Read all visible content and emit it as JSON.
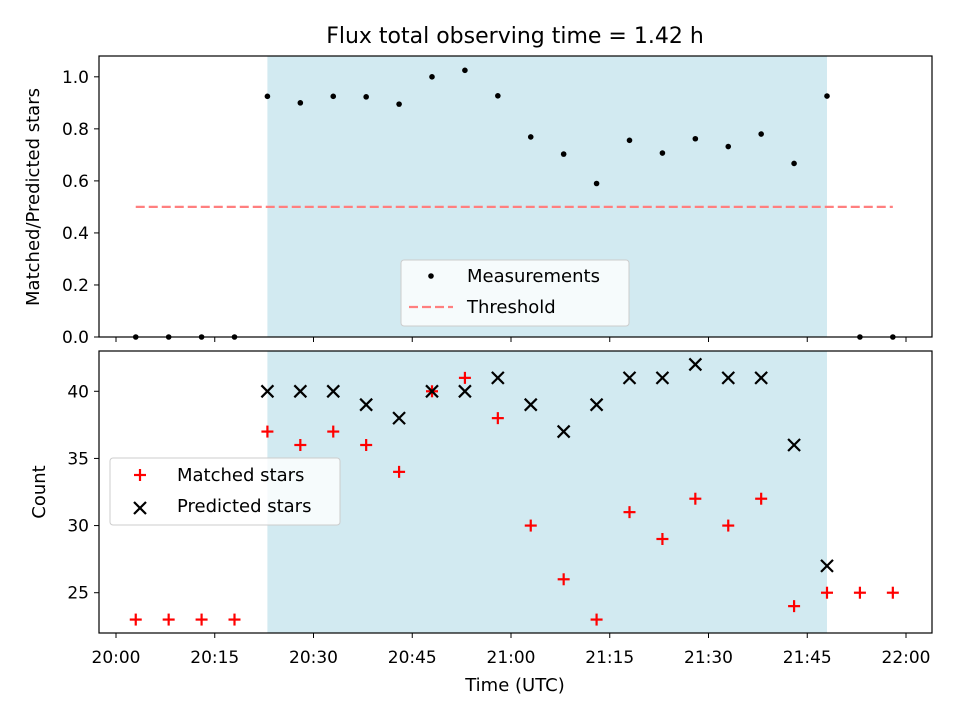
{
  "chart_data": [
    {
      "type": "scatter",
      "title": "Flux total observing time = 1.42 h",
      "xlabel": "",
      "ylabel": "Matched/Predicted stars",
      "xlim": [
        "20:00",
        "22:00"
      ],
      "ylim": [
        0,
        1.08
      ],
      "yticks": [
        "0.0",
        "0.2",
        "0.4",
        "0.6",
        "0.8",
        "1.0"
      ],
      "grid": false,
      "legend_position": "lower-center",
      "shaded_region": {
        "start": "20:23",
        "end": "21:48",
        "color": "#add8e6"
      },
      "threshold": {
        "name": "Threshold",
        "value": 0.5,
        "start": "20:03",
        "end": "21:58",
        "color": "#ff7f7f"
      },
      "series": [
        {
          "name": "Measurements",
          "color": "#000000",
          "marker": "dot",
          "x": [
            "20:03",
            "20:08",
            "20:13",
            "20:18",
            "20:23",
            "20:28",
            "20:33",
            "20:38",
            "20:43",
            "20:48",
            "20:53",
            "20:58",
            "21:03",
            "21:08",
            "21:13",
            "21:18",
            "21:23",
            "21:28",
            "21:33",
            "21:38",
            "21:43",
            "21:48",
            "21:53",
            "21:58"
          ],
          "y": [
            0,
            0,
            0,
            0,
            0.925,
            0.9,
            0.925,
            0.923,
            0.895,
            1.0,
            1.025,
            0.927,
            0.769,
            0.703,
            0.59,
            0.756,
            0.707,
            0.762,
            0.732,
            0.78,
            0.667,
            0.926,
            0,
            0
          ]
        }
      ]
    },
    {
      "type": "scatter",
      "title": "",
      "xlabel": "Time (UTC)",
      "ylabel": "Count",
      "xlim": [
        "20:00",
        "22:00"
      ],
      "ylim": [
        22,
        43
      ],
      "xticks": [
        "20:00",
        "20:15",
        "20:30",
        "20:45",
        "21:00",
        "21:15",
        "21:30",
        "21:45",
        "22:00"
      ],
      "yticks": [
        "25",
        "30",
        "35",
        "40"
      ],
      "grid": false,
      "legend_position": "center-left",
      "shaded_region": {
        "start": "20:23",
        "end": "21:48",
        "color": "#add8e6"
      },
      "series": [
        {
          "name": "Matched stars",
          "color": "#ff0000",
          "marker": "plus",
          "x": [
            "20:03",
            "20:08",
            "20:13",
            "20:18",
            "20:23",
            "20:28",
            "20:33",
            "20:38",
            "20:43",
            "20:48",
            "20:53",
            "20:58",
            "21:03",
            "21:08",
            "21:13",
            "21:18",
            "21:23",
            "21:28",
            "21:33",
            "21:38",
            "21:43",
            "21:48",
            "21:53",
            "21:58"
          ],
          "y": [
            23,
            23,
            23,
            23,
            37,
            36,
            37,
            36,
            34,
            40,
            41,
            38,
            30,
            26,
            23,
            31,
            29,
            32,
            30,
            32,
            24,
            25,
            25,
            25
          ]
        },
        {
          "name": "Predicted stars",
          "color": "#000000",
          "marker": "x",
          "x": [
            "20:23",
            "20:28",
            "20:33",
            "20:38",
            "20:43",
            "20:48",
            "20:53",
            "20:58",
            "21:03",
            "21:08",
            "21:13",
            "21:18",
            "21:23",
            "21:28",
            "21:33",
            "21:38",
            "21:43",
            "21:48"
          ],
          "y": [
            40,
            40,
            40,
            39,
            38,
            40,
            40,
            41,
            39,
            37,
            39,
            41,
            41,
            42,
            41,
            41,
            36,
            27
          ]
        }
      ]
    }
  ]
}
